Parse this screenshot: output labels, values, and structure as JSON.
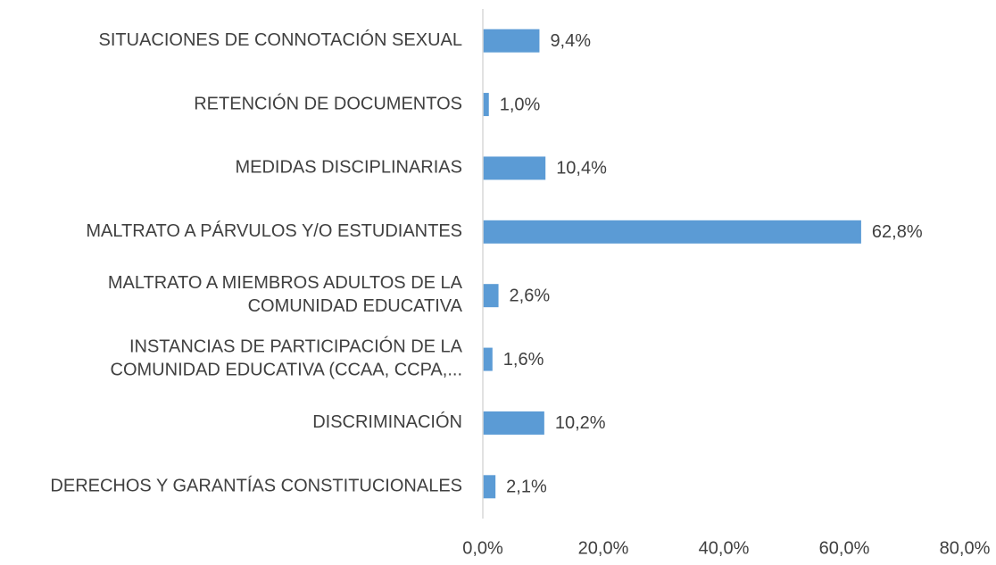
{
  "chart_data": {
    "type": "bar",
    "orientation": "horizontal",
    "categories": [
      "SITUACIONES DE CONNOTACIÓN SEXUAL",
      "RETENCIÓN DE DOCUMENTOS",
      "MEDIDAS DISCIPLINARIAS",
      "MALTRATO A PÁRVULOS Y/O ESTUDIANTES",
      "MALTRATO A MIEMBROS ADULTOS DE LA\nCOMUNIDAD EDUCATIVA",
      "INSTANCIAS DE PARTICIPACIÓN DE LA\nCOMUNIDAD EDUCATIVA (CCAA, CCPA,...",
      "DISCRIMINACIÓN",
      "DERECHOS Y GARANTÍAS CONSTITUCIONALES"
    ],
    "values": [
      9.4,
      1.0,
      10.4,
      62.8,
      2.6,
      1.6,
      10.2,
      2.1
    ],
    "value_labels": [
      "9,4%",
      "1,0%",
      "10,4%",
      "62,8%",
      "2,6%",
      "1,6%",
      "10,2%",
      "2,1%"
    ],
    "color": "#5b9bd5",
    "xlim": [
      0,
      80
    ],
    "xticks": [
      {
        "value": 0,
        "label": "0,0%"
      },
      {
        "value": 20,
        "label": "20,0%"
      },
      {
        "value": 40,
        "label": "40,0%"
      },
      {
        "value": 60,
        "label": "60,0%"
      },
      {
        "value": 80,
        "label": "80,0%"
      }
    ],
    "grid": false
  }
}
